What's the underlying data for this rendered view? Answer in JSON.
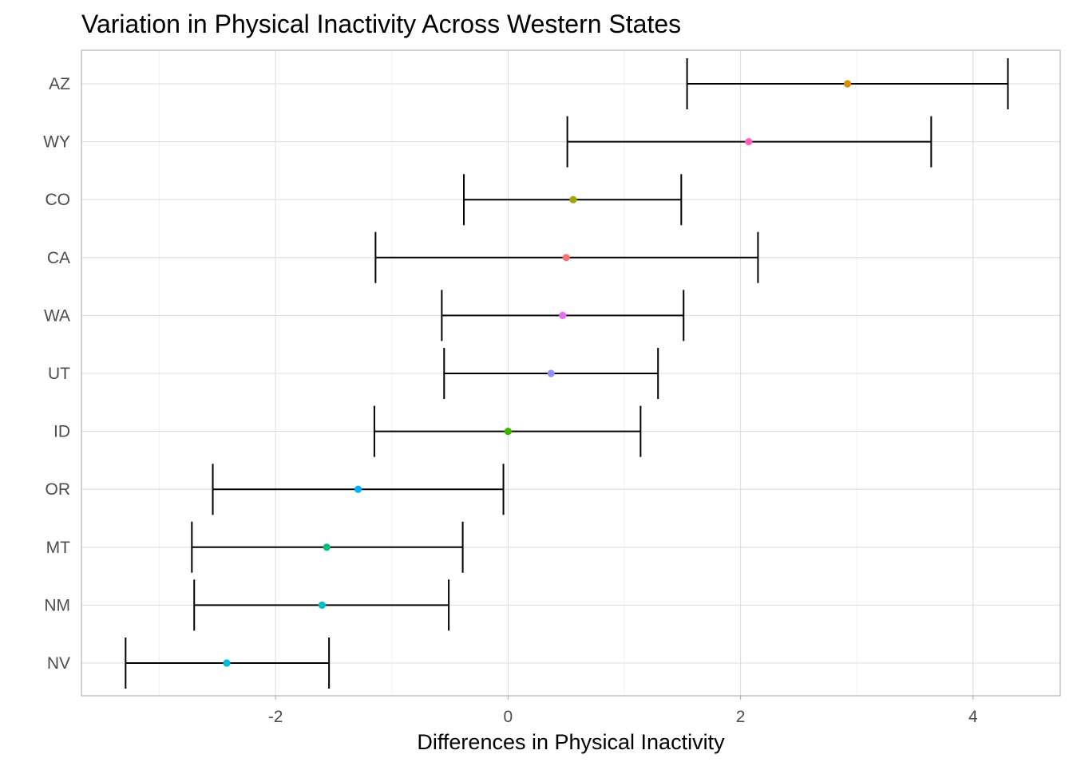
{
  "chart_data": {
    "type": "scatter",
    "title": "Variation in Physical Inactivity Across Western States",
    "xlabel": "Differences in Physical Inactivity",
    "ylabel": "",
    "xlim": [
      -3.67,
      4.75
    ],
    "x_ticks": [
      -2,
      0,
      2,
      4
    ],
    "x_tick_labels": [
      "-2",
      "0",
      "2",
      "4"
    ],
    "grid": true,
    "legend": "none",
    "points": [
      {
        "label": "AZ",
        "value": 2.92,
        "lower": 1.54,
        "upper": 4.3,
        "color": "#D89000"
      },
      {
        "label": "WY",
        "value": 2.07,
        "lower": 0.51,
        "upper": 3.64,
        "color": "#FF62BC"
      },
      {
        "label": "CO",
        "value": 0.56,
        "lower": -0.38,
        "upper": 1.49,
        "color": "#A3A500"
      },
      {
        "label": "CA",
        "value": 0.5,
        "lower": -1.14,
        "upper": 2.15,
        "color": "#F8766D"
      },
      {
        "label": "WA",
        "value": 0.47,
        "lower": -0.57,
        "upper": 1.51,
        "color": "#E76BF3"
      },
      {
        "label": "UT",
        "value": 0.37,
        "lower": -0.55,
        "upper": 1.29,
        "color": "#9590FF"
      },
      {
        "label": "ID",
        "value": 0.0,
        "lower": -1.15,
        "upper": 1.14,
        "color": "#39B600"
      },
      {
        "label": "OR",
        "value": -1.29,
        "lower": -2.54,
        "upper": -0.04,
        "color": "#00B0F6"
      },
      {
        "label": "MT",
        "value": -1.56,
        "lower": -2.72,
        "upper": -0.39,
        "color": "#00BF7D"
      },
      {
        "label": "NM",
        "value": -1.6,
        "lower": -2.7,
        "upper": -0.51,
        "color": "#00BFC4"
      },
      {
        "label": "NV",
        "value": -2.42,
        "lower": -3.29,
        "upper": -1.54,
        "color": "#00BCD8"
      }
    ]
  }
}
